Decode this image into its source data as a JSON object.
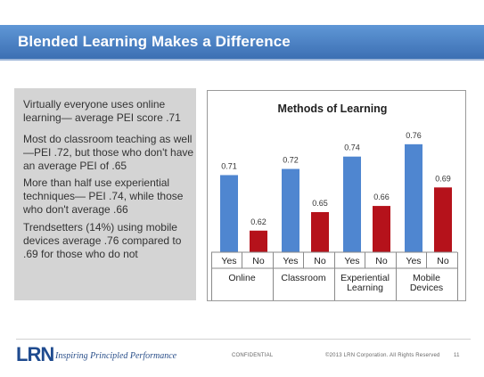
{
  "slide": {
    "title": "Blended Learning Makes a Difference"
  },
  "bullets": [
    "Virtually everyone uses online learning— average PEI score .71",
    "Most do classroom teaching as well —PEI .72, but those who don't have an average PEI of .65",
    "More than half use experiential techniques— PEI .74, while those who don't average .66",
    "Trendsetters (14%) using mobile devices average .76 compared to .69 for those who do not"
  ],
  "chart_data": {
    "type": "bar",
    "title": "Methods of Learning",
    "categories": [
      "Online",
      "Classroom",
      "Experiential Learning",
      "Mobile Devices"
    ],
    "category_lines": [
      [
        "Online"
      ],
      [
        "Classroom"
      ],
      [
        "Experiential",
        "Learning"
      ],
      [
        "Mobile",
        "Devices"
      ]
    ],
    "sub_categories": [
      "Yes",
      "No"
    ],
    "series": [
      {
        "name": "Yes",
        "values": [
          0.71,
          0.72,
          0.74,
          0.76
        ],
        "labels": [
          "0.71",
          "0.72",
          "0.74",
          "0.76"
        ],
        "color": "#4f86d0"
      },
      {
        "name": "No",
        "values": [
          0.62,
          0.65,
          0.66,
          0.69
        ],
        "labels": [
          "0.62",
          "0.65",
          "0.66",
          "0.69"
        ],
        "color": "#b5121b"
      }
    ],
    "ylim": [
      0.585,
      0.78
    ],
    "grid": false,
    "legend": "none"
  },
  "footer": {
    "logo": "LRN",
    "tagline": "Inspiring Principled Performance",
    "confidential": "CONFIDENTIAL",
    "copyright": "©2013 LRN Corporation. All Rights Reserved",
    "page_number": "11"
  }
}
